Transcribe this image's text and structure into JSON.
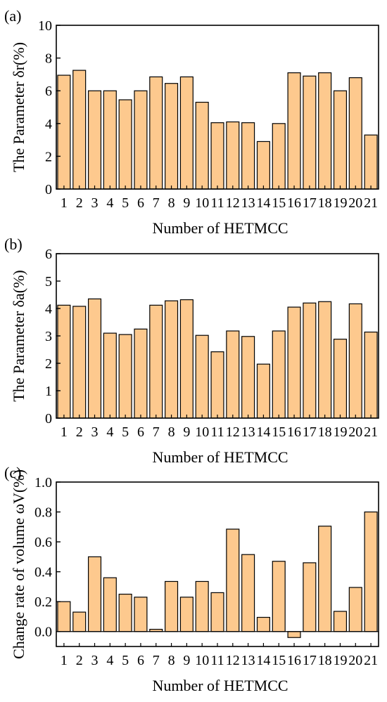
{
  "colors": {
    "bar_fill": "#FDC98E",
    "bar_stroke": "#000000",
    "axis": "#000000"
  },
  "chart_data": [
    {
      "type": "bar",
      "panel_label": "(a)",
      "xlabel": "Number of HETMCC",
      "ylabel": "The Parameter δr(%)",
      "categories": [
        "1",
        "2",
        "3",
        "4",
        "5",
        "6",
        "7",
        "8",
        "9",
        "10",
        "11",
        "12",
        "13",
        "14",
        "15",
        "16",
        "17",
        "18",
        "19",
        "20",
        "21"
      ],
      "values": [
        6.95,
        7.25,
        6.0,
        6.0,
        5.45,
        6.0,
        6.85,
        6.45,
        6.85,
        5.3,
        4.05,
        4.1,
        4.05,
        2.9,
        4.0,
        7.1,
        6.9,
        7.1,
        6.0,
        6.8,
        3.3
      ],
      "ylim": [
        0,
        10
      ],
      "yticks": [
        "0",
        "2",
        "4",
        "6",
        "8",
        "10"
      ],
      "grid": false,
      "legend": "none"
    },
    {
      "type": "bar",
      "panel_label": "(b)",
      "xlabel": "Number of HETMCC",
      "ylabel": "The Parameter δa(%)",
      "categories": [
        "1",
        "2",
        "3",
        "4",
        "5",
        "6",
        "7",
        "8",
        "9",
        "10",
        "11",
        "12",
        "13",
        "14",
        "15",
        "16",
        "17",
        "18",
        "19",
        "20",
        "21"
      ],
      "values": [
        4.12,
        4.08,
        4.35,
        3.1,
        3.05,
        3.25,
        4.12,
        4.28,
        4.32,
        3.02,
        2.42,
        3.18,
        2.98,
        1.97,
        3.18,
        4.05,
        4.2,
        4.25,
        2.88,
        4.17,
        3.14
      ],
      "ylim": [
        0,
        6
      ],
      "yticks": [
        "0",
        "1",
        "2",
        "3",
        "4",
        "5",
        "6"
      ],
      "grid": false,
      "legend": "none"
    },
    {
      "type": "bar",
      "panel_label": "(c)",
      "xlabel": "Number of HETMCC",
      "ylabel": "Change rate of volume ωV(%)",
      "categories": [
        "1",
        "2",
        "3",
        "4",
        "5",
        "6",
        "7",
        "8",
        "9",
        "10",
        "11",
        "12",
        "13",
        "14",
        "15",
        "16",
        "17",
        "18",
        "19",
        "20",
        "21"
      ],
      "values": [
        0.2,
        0.13,
        0.5,
        0.36,
        0.25,
        0.23,
        0.015,
        0.335,
        0.23,
        0.335,
        0.26,
        0.685,
        0.515,
        0.095,
        0.47,
        -0.04,
        0.46,
        0.705,
        0.135,
        0.295,
        0.8
      ],
      "ylim": [
        -0.1,
        1.0
      ],
      "yticks": [
        "0.0",
        "0.2",
        "0.4",
        "0.6",
        "0.8",
        "1.0"
      ],
      "ytick_values": [
        0.0,
        0.2,
        0.4,
        0.6,
        0.8,
        1.0
      ],
      "grid": false,
      "legend": "none"
    }
  ]
}
